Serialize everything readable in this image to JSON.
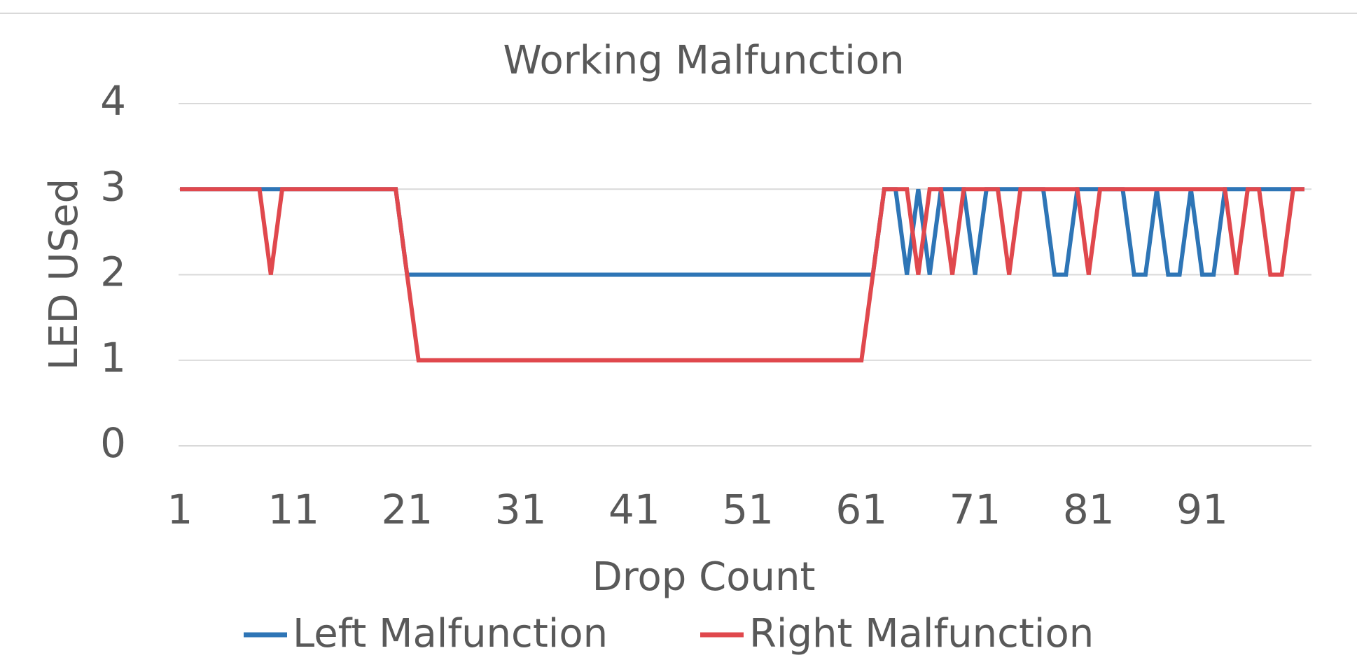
{
  "chart_data": {
    "type": "line",
    "title": "Working Malfunction",
    "x_label": "Drop Count",
    "y_label": "LED USed",
    "categories": [
      "1",
      null,
      null,
      null,
      null,
      null,
      null,
      null,
      null,
      null,
      "11",
      null,
      null,
      null,
      null,
      null,
      null,
      null,
      null,
      null,
      "21",
      null,
      null,
      null,
      null,
      null,
      null,
      null,
      null,
      null,
      "31",
      null,
      null,
      null,
      null,
      null,
      null,
      null,
      null,
      null,
      "41",
      null,
      null,
      null,
      null,
      null,
      null,
      null,
      null,
      null,
      "51",
      null,
      null,
      null,
      null,
      null,
      null,
      null,
      null,
      null,
      "61",
      null,
      null,
      null,
      null,
      null,
      null,
      null,
      null,
      null,
      "71",
      null,
      null,
      null,
      null,
      null,
      null,
      null,
      null,
      null,
      "81",
      null,
      null,
      null,
      null,
      null,
      null,
      null,
      null,
      null,
      "91",
      null,
      null,
      null,
      null,
      null,
      null,
      null,
      null,
      null
    ],
    "series": [
      {
        "name": "Left Malfunction",
        "color": "#2e75b6",
        "values": [
          3,
          3,
          3,
          3,
          3,
          3,
          3,
          3,
          3,
          3,
          3,
          3,
          3,
          3,
          3,
          3,
          3,
          3,
          3,
          3,
          2,
          2,
          2,
          2,
          2,
          2,
          2,
          2,
          2,
          2,
          2,
          2,
          2,
          2,
          2,
          2,
          2,
          2,
          2,
          2,
          2,
          2,
          2,
          2,
          2,
          2,
          2,
          2,
          2,
          2,
          2,
          2,
          2,
          2,
          2,
          2,
          2,
          2,
          2,
          2,
          2,
          2,
          3,
          3,
          2,
          3,
          2,
          3,
          3,
          3,
          2,
          3,
          3,
          3,
          3,
          3,
          3,
          2,
          2,
          3,
          3,
          3,
          3,
          3,
          2,
          2,
          3,
          2,
          2,
          3,
          2,
          2,
          3,
          3,
          3,
          3,
          3,
          3,
          3,
          3
        ]
      },
      {
        "name": "Right Malfunction",
        "color": "#e0484d",
        "values": [
          3,
          3,
          3,
          3,
          3,
          3,
          3,
          3,
          2,
          3,
          3,
          3,
          3,
          3,
          3,
          3,
          3,
          3,
          3,
          3,
          2,
          1,
          1,
          1,
          1,
          1,
          1,
          1,
          1,
          1,
          1,
          1,
          1,
          1,
          1,
          1,
          1,
          1,
          1,
          1,
          1,
          1,
          1,
          1,
          1,
          1,
          1,
          1,
          1,
          1,
          1,
          1,
          1,
          1,
          1,
          1,
          1,
          1,
          1,
          1,
          1,
          2,
          3,
          3,
          3,
          2,
          3,
          3,
          2,
          3,
          3,
          3,
          3,
          2,
          3,
          3,
          3,
          3,
          3,
          3,
          2,
          3,
          3,
          3,
          3,
          3,
          3,
          3,
          3,
          3,
          3,
          3,
          3,
          2,
          3,
          3,
          2,
          2,
          3,
          3
        ]
      }
    ],
    "ylim": [
      0,
      4
    ],
    "yticks": [
      0,
      1,
      2,
      3,
      4
    ],
    "grid": true,
    "legend": "bottom"
  }
}
